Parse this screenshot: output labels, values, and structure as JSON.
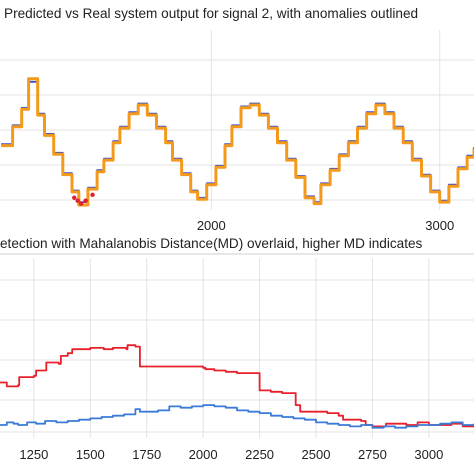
{
  "chart_data": [
    {
      "type": "line",
      "title": "Predicted vs Real system output for signal 2, with anomalies outlined",
      "xlabel": "",
      "ylabel": "",
      "xlim": [
        1075,
        3150
      ],
      "ylim": [
        0,
        1
      ],
      "x_ticks": [
        2000,
        3000
      ],
      "grid": true,
      "series": [
        {
          "color": "#3a4fd0",
          "x": [
            1080,
            1100,
            1130,
            1170,
            1200,
            1240,
            1270,
            1310,
            1350,
            1390,
            1420,
            1460,
            1500,
            1530,
            1570,
            1600,
            1640,
            1680,
            1720,
            1760,
            1800,
            1830,
            1870,
            1910,
            1940,
            1980,
            2020,
            2060,
            2090,
            2130,
            2170,
            2210,
            2250,
            2290,
            2330,
            2370,
            2410,
            2450,
            2480,
            2520,
            2560,
            2600,
            2640,
            2680,
            2720,
            2760,
            2800,
            2840,
            2880,
            2920,
            2960,
            3000,
            3040,
            3080,
            3120,
            3150
          ],
          "y": [
            0.42,
            0.42,
            0.55,
            0.67,
            0.85,
            0.63,
            0.49,
            0.36,
            0.22,
            0.1,
            0.02,
            0.12,
            0.24,
            0.32,
            0.44,
            0.54,
            0.64,
            0.7,
            0.63,
            0.54,
            0.44,
            0.32,
            0.22,
            0.1,
            0.05,
            0.15,
            0.27,
            0.42,
            0.55,
            0.68,
            0.7,
            0.63,
            0.54,
            0.44,
            0.32,
            0.2,
            0.06,
            0.02,
            0.15,
            0.25,
            0.35,
            0.44,
            0.54,
            0.64,
            0.7,
            0.64,
            0.54,
            0.44,
            0.32,
            0.21,
            0.1,
            0.03,
            0.14,
            0.26,
            0.34,
            0.4
          ]
        },
        {
          "color": "#f39a1c",
          "x": [
            1080,
            1100,
            1130,
            1170,
            1200,
            1240,
            1270,
            1310,
            1350,
            1390,
            1420,
            1460,
            1500,
            1530,
            1570,
            1600,
            1640,
            1680,
            1720,
            1760,
            1800,
            1830,
            1870,
            1910,
            1940,
            1980,
            2020,
            2060,
            2090,
            2130,
            2170,
            2210,
            2250,
            2290,
            2330,
            2370,
            2410,
            2450,
            2480,
            2520,
            2560,
            2600,
            2640,
            2680,
            2720,
            2760,
            2800,
            2840,
            2880,
            2920,
            2960,
            3000,
            3040,
            3080,
            3120,
            3150
          ],
          "y": [
            0.41,
            0.41,
            0.54,
            0.66,
            0.87,
            0.62,
            0.48,
            0.35,
            0.21,
            0.09,
            0.0,
            0.11,
            0.23,
            0.31,
            0.43,
            0.53,
            0.63,
            0.69,
            0.62,
            0.53,
            0.43,
            0.31,
            0.21,
            0.09,
            0.04,
            0.14,
            0.26,
            0.41,
            0.54,
            0.67,
            0.69,
            0.62,
            0.53,
            0.43,
            0.31,
            0.19,
            0.05,
            0.01,
            0.14,
            0.24,
            0.34,
            0.43,
            0.53,
            0.63,
            0.69,
            0.63,
            0.53,
            0.43,
            0.31,
            0.2,
            0.09,
            0.02,
            0.13,
            0.25,
            0.33,
            0.39
          ]
        }
      ],
      "anomalies": {
        "color": "#e0202a",
        "x": [
          1400,
          1415,
          1430,
          1450,
          1480
        ],
        "y": [
          0.05,
          0.03,
          0.01,
          0.03,
          0.07
        ]
      }
    },
    {
      "type": "line",
      "title": "etection with Mahalanobis Distance(MD) overlaid, higher MD indicates",
      "xlabel": "",
      "ylabel": "",
      "xlim": [
        1100,
        3200
      ],
      "ylim": [
        0,
        1
      ],
      "x_ticks": [
        1250,
        1500,
        1750,
        2000,
        2250,
        2500,
        2750,
        3000
      ],
      "grid": true,
      "series": [
        {
          "color": "#e8202a",
          "x": [
            1100,
            1130,
            1180,
            1185,
            1250,
            1260,
            1300,
            1305,
            1360,
            1370,
            1400,
            1420,
            1500,
            1560,
            1600,
            1660,
            1665,
            1700,
            1720,
            2000,
            2010,
            2050,
            2100,
            2150,
            2200,
            2250,
            2300,
            2350,
            2400,
            2410,
            2430,
            2500,
            2550,
            2600,
            2620,
            2700,
            2720,
            2750,
            2800,
            2810,
            2850,
            2900,
            2950,
            3000,
            3050,
            3100,
            3150,
            3200
          ],
          "y": [
            0.38,
            0.35,
            0.36,
            0.42,
            0.43,
            0.47,
            0.47,
            0.53,
            0.52,
            0.58,
            0.6,
            0.63,
            0.64,
            0.63,
            0.64,
            0.63,
            0.66,
            0.65,
            0.5,
            0.49,
            0.48,
            0.47,
            0.46,
            0.45,
            0.45,
            0.32,
            0.31,
            0.3,
            0.3,
            0.21,
            0.16,
            0.16,
            0.15,
            0.13,
            0.1,
            0.09,
            0.06,
            0.05,
            0.05,
            0.07,
            0.07,
            0.06,
            0.08,
            0.06,
            0.06,
            0.07,
            0.05,
            0.07
          ]
        },
        {
          "color": "#3a7ad8",
          "x": [
            1100,
            1130,
            1160,
            1180,
            1220,
            1260,
            1300,
            1350,
            1400,
            1450,
            1500,
            1550,
            1600,
            1650,
            1700,
            1720,
            1800,
            1850,
            1900,
            1950,
            2000,
            2050,
            2100,
            2150,
            2200,
            2250,
            2300,
            2350,
            2400,
            2450,
            2500,
            2550,
            2600,
            2650,
            2700,
            2750,
            2800,
            2850,
            2900,
            2950,
            3000,
            3050,
            3100,
            3150,
            3200
          ],
          "y": [
            0.06,
            0.08,
            0.07,
            0.06,
            0.08,
            0.07,
            0.09,
            0.08,
            0.09,
            0.1,
            0.11,
            0.12,
            0.13,
            0.14,
            0.18,
            0.16,
            0.17,
            0.2,
            0.19,
            0.2,
            0.21,
            0.2,
            0.19,
            0.17,
            0.16,
            0.15,
            0.13,
            0.12,
            0.11,
            0.1,
            0.08,
            0.07,
            0.06,
            0.05,
            0.06,
            0.04,
            0.05,
            0.04,
            0.05,
            0.06,
            0.06,
            0.07,
            0.08,
            0.06,
            0.07
          ]
        }
      ]
    }
  ]
}
